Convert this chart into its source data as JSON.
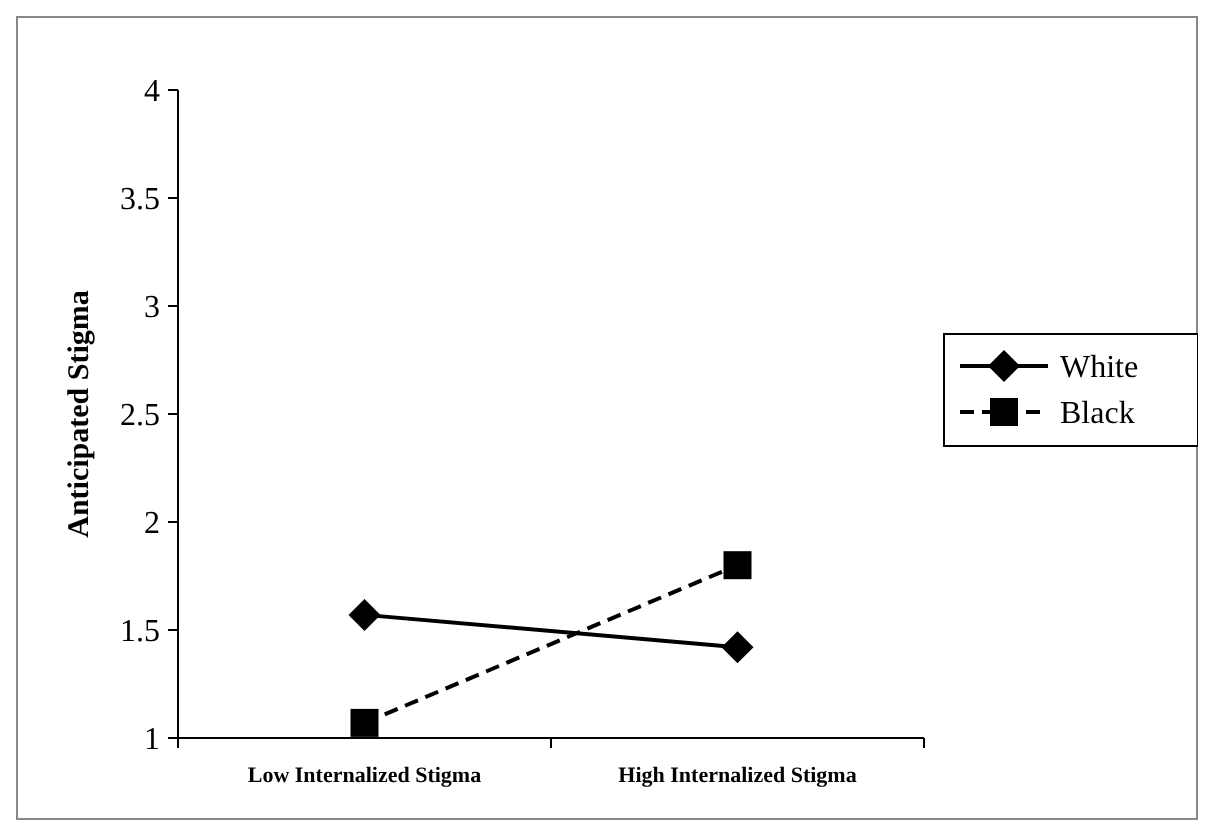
{
  "chart_data": {
    "type": "line",
    "ylabel": "Anticipated Stigma",
    "categories": [
      "Low Internalized Stigma",
      "High Internalized Stigma"
    ],
    "series": [
      {
        "name": "White",
        "color": "#000000",
        "values": [
          1.57,
          1.42
        ],
        "marker": "diamond",
        "line_style": "solid"
      },
      {
        "name": "Black",
        "color": "#000000",
        "values": [
          1.07,
          1.8
        ],
        "marker": "square",
        "line_style": "dashed"
      }
    ],
    "ylim": [
      1,
      4
    ],
    "yticks": [
      1,
      1.5,
      2,
      2.5,
      3,
      3.5,
      4
    ],
    "grid": false,
    "legend": "right"
  }
}
